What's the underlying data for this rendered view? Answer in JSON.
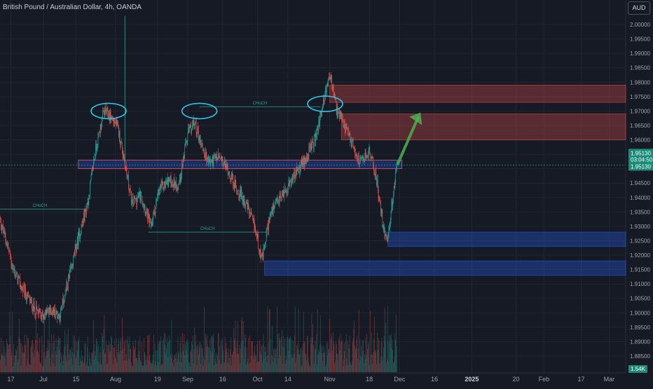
{
  "header": {
    "symbol_title": "British Pound / Australian Dollar, 4h, OANDA",
    "currency_button": "AUD",
    "volume_badge": "1.54K"
  },
  "price_box": {
    "last_price": "1.95130",
    "countdown": "03:04:50",
    "secondary_price": "1.95130"
  },
  "colors": {
    "background": "#161a25",
    "up_candle": "#26a69a",
    "down_candle": "#ef5350",
    "supply_zone": "#ef5350",
    "demand_zone": "#2962ff",
    "annotation_arrow": "#4caf50",
    "circle_markup": "#2ec4e8"
  },
  "chart_data": {
    "type": "candlestick",
    "symbol": "GBPAUD",
    "timeframe": "4h",
    "y_range": [
      1.883,
      2.005
    ],
    "y_ticks": [
      2.0,
      1.995,
      1.99,
      1.985,
      1.98,
      1.975,
      1.97,
      1.965,
      1.96,
      1.955,
      1.95,
      1.945,
      1.94,
      1.935,
      1.93,
      1.925,
      1.92,
      1.915,
      1.91,
      1.905,
      1.9,
      1.895,
      1.89,
      1.885
    ],
    "x_ticks": [
      {
        "label": "17",
        "date": "2024-06-17"
      },
      {
        "label": "Jul",
        "date": "2024-07-01"
      },
      {
        "label": "15",
        "date": "2024-07-15"
      },
      {
        "label": "Aug",
        "date": "2024-08-01"
      },
      {
        "label": "19",
        "date": "2024-08-19"
      },
      {
        "label": "Sep",
        "date": "2024-09-01"
      },
      {
        "label": "16",
        "date": "2024-09-16"
      },
      {
        "label": "Oct",
        "date": "2024-10-01"
      },
      {
        "label": "14",
        "date": "2024-10-14"
      },
      {
        "label": "Nov",
        "date": "2024-11-01"
      },
      {
        "label": "18",
        "date": "2024-11-18"
      },
      {
        "label": "Dec",
        "date": "2024-12-01"
      },
      {
        "label": "16",
        "date": "2024-12-16"
      },
      {
        "label": "2025",
        "date": "2025-01-01"
      },
      {
        "label": "20",
        "date": "2025-01-20"
      },
      {
        "label": "Feb",
        "date": "2025-02-01"
      },
      {
        "label": "17",
        "date": "2025-02-17"
      },
      {
        "label": "Mar",
        "date": "2025-03-01"
      }
    ],
    "price_path": [
      [
        "2024-06-12",
        1.933
      ],
      [
        "2024-06-15",
        1.925
      ],
      [
        "2024-06-18",
        1.915
      ],
      [
        "2024-06-22",
        1.908
      ],
      [
        "2024-06-26",
        1.903
      ],
      [
        "2024-06-30",
        1.8985
      ],
      [
        "2024-07-04",
        1.901
      ],
      [
        "2024-07-08",
        1.899
      ],
      [
        "2024-07-12",
        1.912
      ],
      [
        "2024-07-16",
        1.926
      ],
      [
        "2024-07-20",
        1.938
      ],
      [
        "2024-07-23",
        1.955
      ],
      [
        "2024-07-27",
        1.97
      ],
      [
        "2024-07-30",
        1.968
      ],
      [
        "2024-08-02",
        1.964
      ],
      [
        "2024-08-05",
        1.952
      ],
      [
        "2024-08-08",
        1.938
      ],
      [
        "2024-08-12",
        1.941
      ],
      [
        "2024-08-16",
        1.93
      ],
      [
        "2024-08-20",
        1.943
      ],
      [
        "2024-08-24",
        1.946
      ],
      [
        "2024-08-28",
        1.944
      ],
      [
        "2024-09-01",
        1.962
      ],
      [
        "2024-09-04",
        1.966
      ],
      [
        "2024-09-07",
        1.958
      ],
      [
        "2024-09-10",
        1.952
      ],
      [
        "2024-09-14",
        1.954
      ],
      [
        "2024-09-18",
        1.95
      ],
      [
        "2024-09-22",
        1.943
      ],
      [
        "2024-09-26",
        1.938
      ],
      [
        "2024-09-30",
        1.929
      ],
      [
        "2024-10-03",
        1.918
      ],
      [
        "2024-10-06",
        1.933
      ],
      [
        "2024-10-10",
        1.939
      ],
      [
        "2024-10-14",
        1.944
      ],
      [
        "2024-10-18",
        1.949
      ],
      [
        "2024-10-22",
        1.954
      ],
      [
        "2024-10-26",
        1.961
      ],
      [
        "2024-10-30",
        1.976
      ],
      [
        "2024-11-01",
        1.983
      ],
      [
        "2024-11-04",
        1.97
      ],
      [
        "2024-11-07",
        1.965
      ],
      [
        "2024-11-11",
        1.958
      ],
      [
        "2024-11-14",
        1.952
      ],
      [
        "2024-11-18",
        1.956
      ],
      [
        "2024-11-21",
        1.947
      ],
      [
        "2024-11-24",
        1.929
      ],
      [
        "2024-11-26",
        1.926
      ],
      [
        "2024-11-28",
        1.94
      ],
      [
        "2024-11-30",
        1.9513
      ]
    ],
    "high_max": 2.003,
    "volume_max_label": "1.54K",
    "zones": [
      {
        "kind": "supply",
        "from": "2024-11-01",
        "top": 1.979,
        "bottom": 1.973
      },
      {
        "kind": "supply",
        "from": "2024-11-06",
        "top": 1.969,
        "bottom": 1.96
      },
      {
        "kind": "resistance_support",
        "from": "2024-07-16",
        "to": "2024-12-02",
        "top": 1.953,
        "bottom": 1.95
      },
      {
        "kind": "demand",
        "from": "2024-11-26",
        "top": 1.928,
        "bottom": 1.923
      },
      {
        "kind": "demand",
        "from": "2024-10-04",
        "top": 1.918,
        "bottom": 1.913
      }
    ],
    "structure_lines": [
      {
        "label": "CHoCH",
        "price": 1.936,
        "from": "2024-06-10",
        "to": "2024-07-19"
      },
      {
        "label": "CHoCH",
        "price": 1.9715,
        "from": "2024-09-06",
        "to": "2024-10-28"
      },
      {
        "label": "CHoCH",
        "price": 1.928,
        "from": "2024-08-15",
        "to": "2024-10-05"
      }
    ]
  }
}
